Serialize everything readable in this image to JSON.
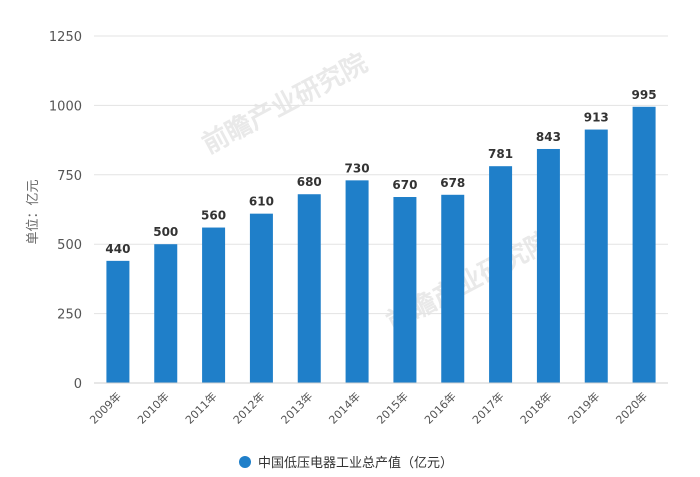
{
  "chart_data": {
    "type": "bar",
    "categories": [
      "2009年",
      "2010年",
      "2011年",
      "2012年",
      "2013年",
      "2014年",
      "2015年",
      "2016年",
      "2017年",
      "2018年",
      "2019年",
      "2020年"
    ],
    "series": [
      {
        "name": "中国低压电器工业总产值（亿元）",
        "values": [
          440,
          500,
          560,
          610,
          680,
          730,
          670,
          678,
          781,
          843,
          913,
          995
        ]
      }
    ],
    "ylabel": "单位：亿元",
    "ylim": [
      0,
      1250
    ],
    "yticks": [
      0,
      250,
      500,
      750,
      1000,
      1250
    ],
    "grid": true,
    "data_labels": true,
    "legend_position": "bottom",
    "bar_color": "#1f7fc9"
  },
  "watermark": "前瞻产业研究院"
}
